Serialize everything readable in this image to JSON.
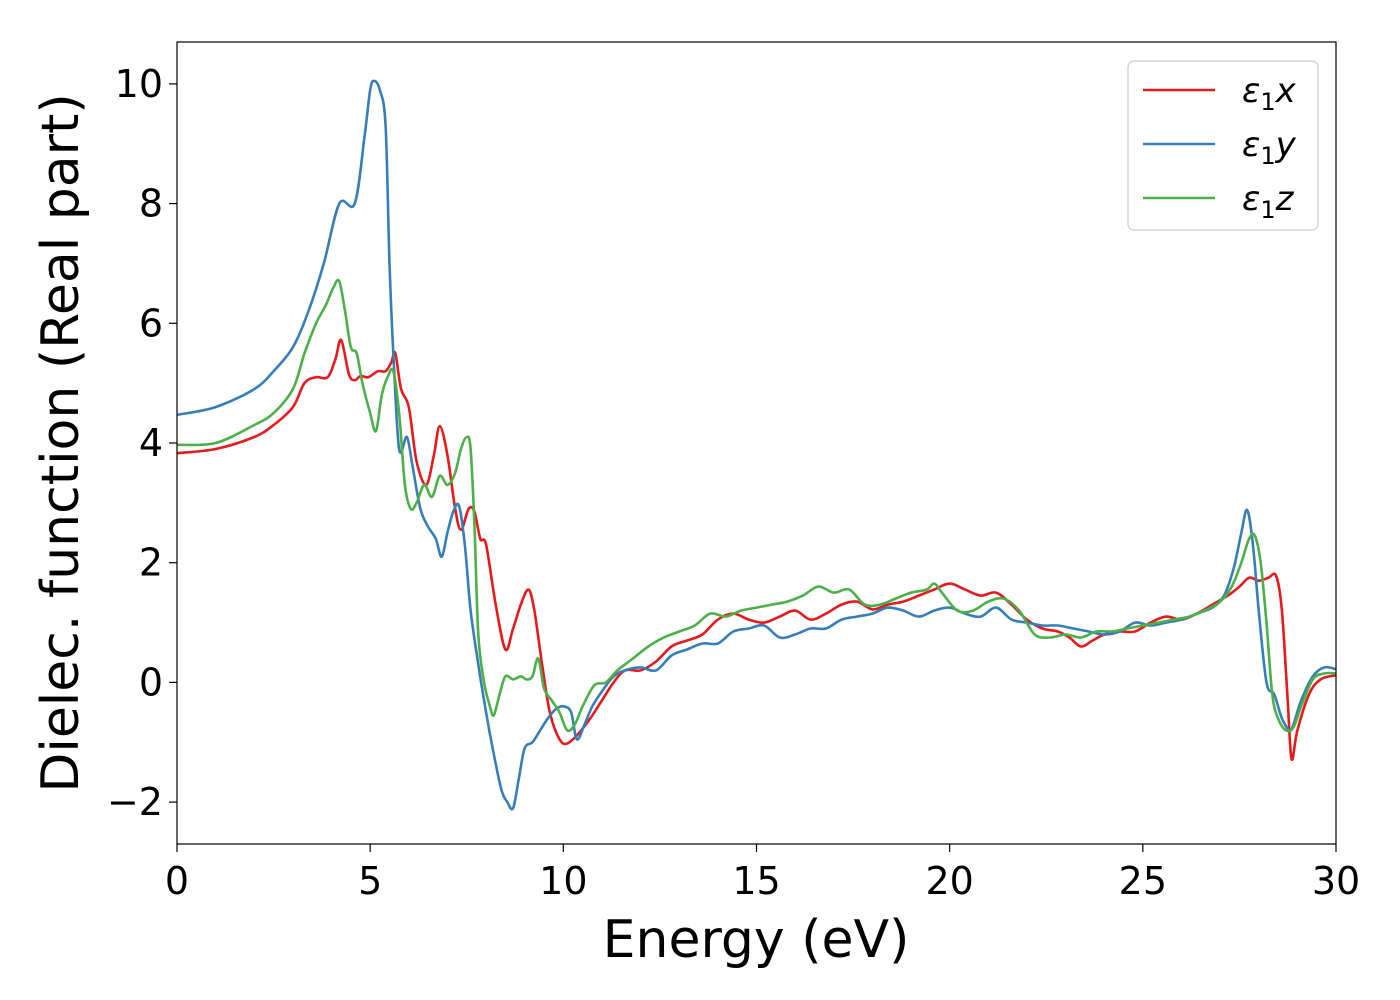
{
  "chart_data": {
    "type": "line",
    "title": "",
    "xlabel": "Energy (eV)",
    "ylabel": "Dielec. function (Real part)",
    "xlim": [
      0,
      30
    ],
    "ylim": [
      -2.7,
      10.7
    ],
    "xticks": [
      0,
      5,
      10,
      15,
      20,
      25,
      30
    ],
    "xtick_labels": [
      "0",
      "5",
      "10",
      "15",
      "20",
      "25",
      "30"
    ],
    "yticks": [
      -2,
      0,
      2,
      4,
      6,
      8,
      10
    ],
    "ytick_labels": [
      "−2",
      "0",
      "2",
      "4",
      "6",
      "8",
      "10"
    ],
    "grid": false,
    "legend_position": "top-right",
    "series": [
      {
        "name": "ε₁x",
        "name_base": "ε",
        "name_sub": "1",
        "name_suffix": "x",
        "color": "#e41a1c",
        "x": [
          0,
          1,
          2,
          2.5,
          3,
          3.3,
          3.6,
          3.9,
          4.1,
          4.25,
          4.45,
          4.6,
          4.75,
          4.95,
          5.2,
          5.4,
          5.55,
          5.65,
          5.8,
          6.0,
          6.2,
          6.45,
          6.65,
          6.8,
          7.0,
          7.2,
          7.35,
          7.55,
          7.7,
          7.85,
          8.0,
          8.25,
          8.5,
          8.7,
          8.9,
          9.1,
          9.25,
          9.45,
          9.65,
          9.9,
          10.1,
          10.4,
          10.7,
          11.0,
          11.3,
          11.6,
          12.0,
          12.4,
          12.8,
          13.2,
          13.6,
          14.0,
          14.4,
          14.8,
          15.2,
          15.6,
          16.0,
          16.4,
          16.8,
          17.2,
          17.6,
          18.0,
          18.4,
          18.8,
          19.2,
          19.6,
          20.0,
          20.4,
          20.8,
          21.2,
          21.6,
          22.0,
          22.4,
          22.8,
          23.1,
          23.4,
          23.7,
          24.0,
          24.4,
          24.8,
          25.2,
          25.6,
          26.0,
          26.4,
          26.8,
          27.2,
          27.5,
          27.75,
          28.0,
          28.25,
          28.45,
          28.6,
          28.75,
          28.85,
          29.0,
          29.3,
          29.6,
          30.0
        ],
        "y": [
          3.83,
          3.9,
          4.1,
          4.3,
          4.6,
          5.0,
          5.1,
          5.1,
          5.4,
          5.72,
          5.15,
          5.05,
          5.12,
          5.1,
          5.2,
          5.2,
          5.35,
          5.5,
          4.9,
          4.6,
          3.7,
          3.3,
          3.8,
          4.28,
          3.8,
          2.9,
          2.55,
          2.9,
          2.85,
          2.4,
          2.3,
          1.3,
          0.55,
          0.9,
          1.3,
          1.55,
          1.2,
          0.3,
          -0.5,
          -0.95,
          -1.02,
          -0.85,
          -0.6,
          -0.3,
          0.0,
          0.2,
          0.2,
          0.35,
          0.6,
          0.7,
          0.8,
          1.05,
          1.15,
          1.05,
          1.0,
          1.1,
          1.2,
          1.05,
          1.15,
          1.3,
          1.35,
          1.22,
          1.3,
          1.35,
          1.45,
          1.55,
          1.65,
          1.55,
          1.45,
          1.5,
          1.3,
          1.05,
          0.9,
          0.85,
          0.75,
          0.6,
          0.7,
          0.8,
          0.85,
          0.85,
          1.0,
          1.1,
          1.05,
          1.15,
          1.3,
          1.45,
          1.6,
          1.75,
          1.7,
          1.75,
          1.78,
          1.2,
          -0.3,
          -1.28,
          -0.8,
          -0.2,
          0.05,
          0.12
        ]
      },
      {
        "name": "ε₁y",
        "name_base": "ε",
        "name_sub": "1",
        "name_suffix": "y",
        "color": "#377eb8",
        "x": [
          0,
          1,
          2,
          2.5,
          3,
          3.4,
          3.8,
          4.2,
          4.6,
          4.85,
          5.0,
          5.1,
          5.25,
          5.4,
          5.5,
          5.6,
          5.75,
          5.95,
          6.1,
          6.3,
          6.5,
          6.7,
          6.85,
          7.0,
          7.15,
          7.3,
          7.45,
          7.6,
          7.8,
          8.0,
          8.2,
          8.4,
          8.55,
          8.7,
          8.85,
          9.0,
          9.2,
          9.4,
          9.6,
          9.8,
          10.0,
          10.2,
          10.35,
          10.55,
          10.75,
          11.0,
          11.3,
          11.6,
          12.0,
          12.4,
          12.8,
          13.2,
          13.6,
          14.0,
          14.4,
          14.8,
          15.2,
          15.6,
          16.0,
          16.4,
          16.8,
          17.2,
          17.6,
          18.0,
          18.4,
          18.8,
          19.2,
          19.6,
          20.0,
          20.4,
          20.8,
          21.2,
          21.6,
          22.0,
          22.4,
          22.8,
          23.2,
          23.6,
          24.0,
          24.4,
          24.8,
          25.2,
          25.6,
          26.0,
          26.4,
          26.8,
          27.1,
          27.35,
          27.55,
          27.7,
          27.85,
          28.0,
          28.2,
          28.4,
          28.6,
          28.8,
          28.9,
          29.1,
          29.4,
          29.7,
          30.0
        ],
        "y": [
          4.47,
          4.6,
          4.9,
          5.2,
          5.6,
          6.2,
          7.0,
          8.0,
          8.0,
          9.1,
          9.9,
          10.05,
          9.9,
          9.3,
          7.0,
          5.5,
          3.9,
          4.1,
          3.6,
          2.9,
          2.6,
          2.4,
          2.1,
          2.5,
          2.85,
          2.95,
          2.3,
          1.2,
          0.3,
          -0.5,
          -1.2,
          -1.8,
          -2.0,
          -2.1,
          -1.6,
          -1.1,
          -1.0,
          -0.8,
          -0.6,
          -0.45,
          -0.4,
          -0.5,
          -0.95,
          -0.7,
          -0.4,
          -0.15,
          0.1,
          0.2,
          0.25,
          0.2,
          0.45,
          0.55,
          0.65,
          0.65,
          0.85,
          0.9,
          0.95,
          0.75,
          0.8,
          0.9,
          0.9,
          1.05,
          1.1,
          1.15,
          1.25,
          1.2,
          1.1,
          1.2,
          1.25,
          1.15,
          1.1,
          1.25,
          1.05,
          1.0,
          0.95,
          0.95,
          0.9,
          0.85,
          0.8,
          0.85,
          1.0,
          0.95,
          1.0,
          1.05,
          1.15,
          1.25,
          1.45,
          1.9,
          2.5,
          2.88,
          2.3,
          1.2,
          0.0,
          -0.2,
          -0.6,
          -0.8,
          -0.7,
          -0.3,
          0.1,
          0.25,
          0.22
        ]
      },
      {
        "name": "ε₁z",
        "name_base": "ε",
        "name_sub": "1",
        "name_suffix": "z",
        "color": "#4daf4a",
        "x": [
          0,
          1,
          2,
          2.5,
          3,
          3.3,
          3.6,
          3.85,
          4.05,
          4.2,
          4.35,
          4.5,
          4.65,
          4.8,
          5.0,
          5.15,
          5.3,
          5.45,
          5.6,
          5.75,
          5.9,
          6.05,
          6.2,
          6.4,
          6.6,
          6.8,
          7.0,
          7.2,
          7.35,
          7.5,
          7.6,
          7.7,
          7.8,
          7.95,
          8.1,
          8.2,
          8.35,
          8.5,
          8.7,
          8.9,
          9.05,
          9.2,
          9.35,
          9.5,
          9.7,
          9.9,
          10.1,
          10.3,
          10.5,
          10.8,
          11.1,
          11.4,
          11.8,
          12.2,
          12.6,
          13.0,
          13.4,
          13.8,
          14.2,
          14.6,
          15.0,
          15.4,
          15.8,
          16.2,
          16.6,
          17.0,
          17.4,
          17.8,
          18.2,
          18.6,
          19.0,
          19.4,
          19.6,
          19.8,
          20.2,
          20.6,
          21.0,
          21.4,
          21.8,
          22.2,
          22.6,
          23.0,
          23.4,
          23.8,
          24.2,
          24.6,
          25.0,
          25.4,
          25.8,
          26.2,
          26.6,
          27.0,
          27.3,
          27.55,
          27.75,
          27.9,
          28.05,
          28.2,
          28.35,
          28.5,
          28.7,
          28.9,
          29.1,
          29.4,
          29.7,
          30.0
        ],
        "y": [
          3.97,
          4.0,
          4.3,
          4.5,
          4.9,
          5.5,
          6.0,
          6.3,
          6.6,
          6.7,
          6.2,
          5.6,
          5.5,
          5.0,
          4.5,
          4.2,
          4.8,
          5.1,
          5.2,
          4.5,
          3.3,
          2.9,
          3.0,
          3.3,
          3.1,
          3.45,
          3.3,
          3.5,
          3.9,
          4.1,
          3.9,
          2.6,
          0.8,
          0.0,
          -0.4,
          -0.55,
          -0.2,
          0.1,
          0.05,
          0.1,
          0.05,
          0.1,
          0.4,
          -0.1,
          -0.3,
          -0.5,
          -0.8,
          -0.7,
          -0.4,
          -0.05,
          0.0,
          0.2,
          0.4,
          0.6,
          0.75,
          0.85,
          0.95,
          1.15,
          1.1,
          1.2,
          1.25,
          1.3,
          1.35,
          1.45,
          1.6,
          1.5,
          1.55,
          1.3,
          1.3,
          1.4,
          1.5,
          1.55,
          1.65,
          1.5,
          1.2,
          1.2,
          1.35,
          1.4,
          1.2,
          0.8,
          0.75,
          0.8,
          0.75,
          0.85,
          0.85,
          0.9,
          0.95,
          1.0,
          1.05,
          1.1,
          1.2,
          1.35,
          1.6,
          2.0,
          2.4,
          2.45,
          2.0,
          1.0,
          -0.2,
          -0.6,
          -0.8,
          -0.75,
          -0.4,
          0.05,
          0.15,
          0.15
        ]
      }
    ]
  }
}
